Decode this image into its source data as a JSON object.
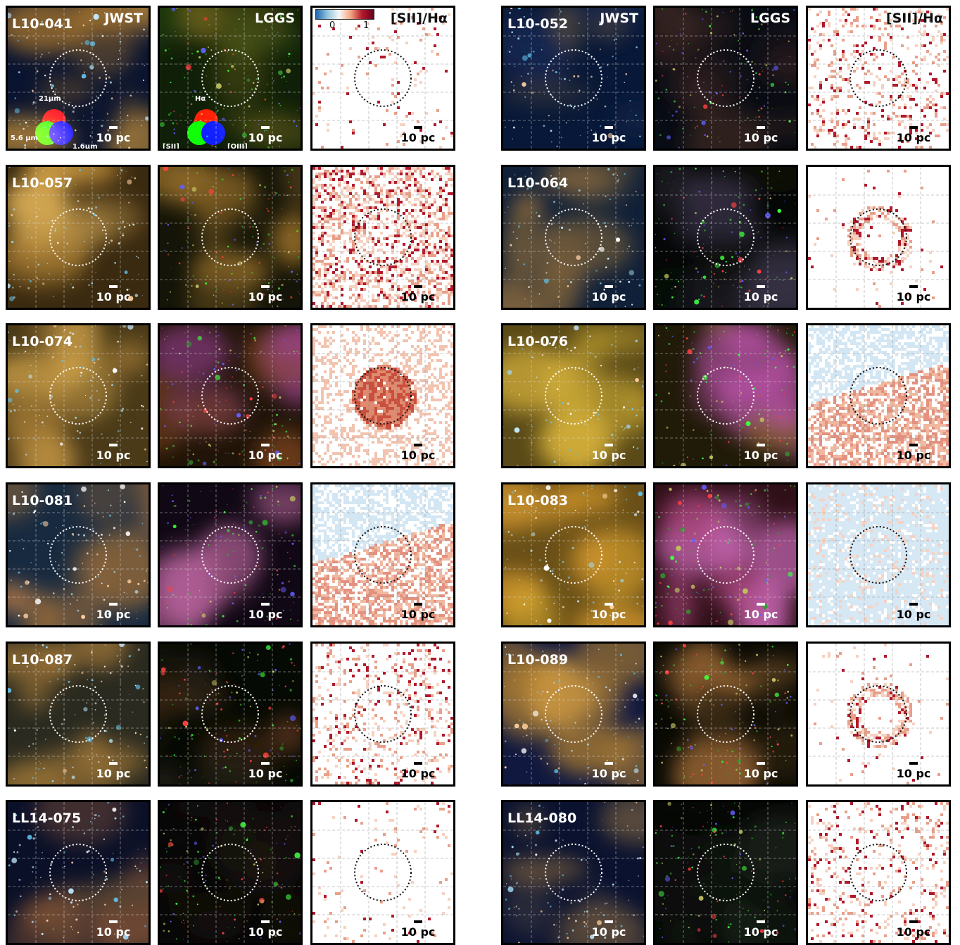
{
  "instrument_labels": {
    "jwst": "JWST",
    "lggs": "LGGS",
    "ratio": "[SII]/Hα"
  },
  "scale_bar_label": "10 pc",
  "colorbar": {
    "tick_low": "0",
    "tick_high": "1"
  },
  "legend_jwst": {
    "red": "21μm",
    "green": "5.6 μm",
    "blue": "1.6μm"
  },
  "legend_lggs": {
    "red": "Hα",
    "green": "[SII]",
    "blue": "[OIII]"
  },
  "objects": [
    {
      "id": "L10-041",
      "ratio_level": "sparse"
    },
    {
      "id": "L10-052",
      "ratio_level": "patchy"
    },
    {
      "id": "L10-057",
      "ratio_level": "medium"
    },
    {
      "id": "L10-064",
      "ratio_level": "shell"
    },
    {
      "id": "L10-074",
      "ratio_level": "high"
    },
    {
      "id": "L10-076",
      "ratio_level": "mixed"
    },
    {
      "id": "L10-081",
      "ratio_level": "mixed"
    },
    {
      "id": "L10-083",
      "ratio_level": "low"
    },
    {
      "id": "L10-087",
      "ratio_level": "patchy"
    },
    {
      "id": "L10-089",
      "ratio_level": "shell"
    },
    {
      "id": "LL14-075",
      "ratio_level": "sparse"
    },
    {
      "id": "LL14-080",
      "ratio_level": "patchy"
    }
  ],
  "colors": {
    "frame": "#000000",
    "overlay_light": "#ffffff",
    "overlay_dark": "#111111",
    "ratio_low": "#92c5de",
    "ratio_high": "#b2182b"
  }
}
